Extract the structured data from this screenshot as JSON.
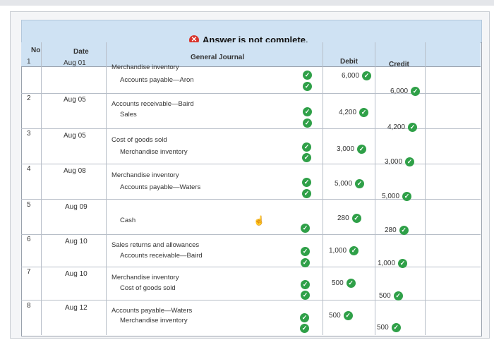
{
  "banner": {
    "message": "Answer is not complete."
  },
  "headers": {
    "no": "No",
    "date": "Date",
    "journal": "General Journal",
    "debit": "Debit",
    "credit": "Credit"
  },
  "rows": [
    {
      "no": "1",
      "date": "Aug 01",
      "debit_account": "Merchandise inventory",
      "credit_account": "Accounts payable—Aron",
      "debit": "6,000",
      "credit": "6,000"
    },
    {
      "no": "2",
      "date": "Aug 05",
      "debit_account": "Accounts receivable—Baird",
      "credit_account": "Sales",
      "debit": "4,200",
      "credit": "4,200"
    },
    {
      "no": "3",
      "date": "Aug 05",
      "debit_account": "Cost of goods sold",
      "credit_account": "Merchandise inventory",
      "debit": "3,000",
      "credit": "3,000"
    },
    {
      "no": "4",
      "date": "Aug 08",
      "debit_account": "Merchandise inventory",
      "credit_account": "Accounts payable—Waters",
      "debit": "5,000",
      "credit": "5,000"
    },
    {
      "no": "5",
      "date": "Aug 09",
      "debit_account": "",
      "credit_account": "Cash",
      "debit": "280",
      "credit": "280"
    },
    {
      "no": "6",
      "date": "Aug 10",
      "debit_account": "Sales returns and allowances",
      "credit_account": "Accounts receivable—Baird",
      "debit": "1,000",
      "credit": "1,000"
    },
    {
      "no": "7",
      "date": "Aug 10",
      "debit_account": "Merchandise inventory",
      "credit_account": "Cost of goods sold",
      "debit": "500",
      "credit": "500"
    },
    {
      "no": "8",
      "date": "Aug 12",
      "debit_account": "Accounts payable—Waters",
      "credit_account": "Merchandise inventory",
      "debit": "500",
      "credit": "500"
    }
  ],
  "colors": {
    "header_bg": "#cfe2f3",
    "check": "#2fa048",
    "error": "#d9342b"
  },
  "icons": {
    "status": "x-circle-icon",
    "correct": "check-circle-icon",
    "cursor": "hand-pointer-icon"
  }
}
